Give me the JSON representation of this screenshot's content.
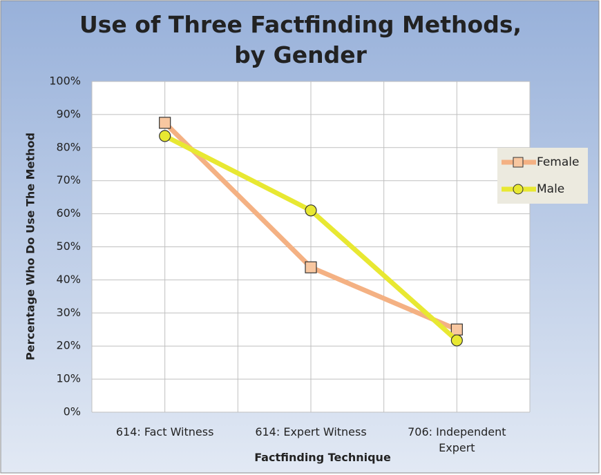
{
  "chart_data": {
    "type": "line",
    "title": "Use of Three Factfinding Methods,\nby Gender",
    "x_label": "Factfinding Technique",
    "y_label": "Percentage Who Do Use The Method",
    "categories": [
      "614: Fact Witness",
      "614: Expert Witness",
      "706: Independent\nExpert"
    ],
    "series": [
      {
        "name": "Female",
        "color": "#f4b183",
        "marker": "square",
        "values": [
          87.5,
          43.8,
          25.0
        ]
      },
      {
        "name": "Male",
        "color": "#e8e832",
        "marker": "circle",
        "values": [
          83.5,
          61.0,
          21.7
        ]
      }
    ],
    "ylim": [
      0,
      100
    ],
    "yticks": [
      {
        "value": 0,
        "label": "0%"
      },
      {
        "value": 10,
        "label": "10%"
      },
      {
        "value": 20,
        "label": "20%"
      },
      {
        "value": 30,
        "label": "30%"
      },
      {
        "value": 40,
        "label": "40%"
      },
      {
        "value": 50,
        "label": "50%"
      },
      {
        "value": 60,
        "label": "60%"
      },
      {
        "value": 70,
        "label": "70%"
      },
      {
        "value": 80,
        "label": "80%"
      },
      {
        "value": 90,
        "label": "90%"
      },
      {
        "value": 100,
        "label": "100%"
      }
    ],
    "grid": true,
    "legend": "right"
  }
}
